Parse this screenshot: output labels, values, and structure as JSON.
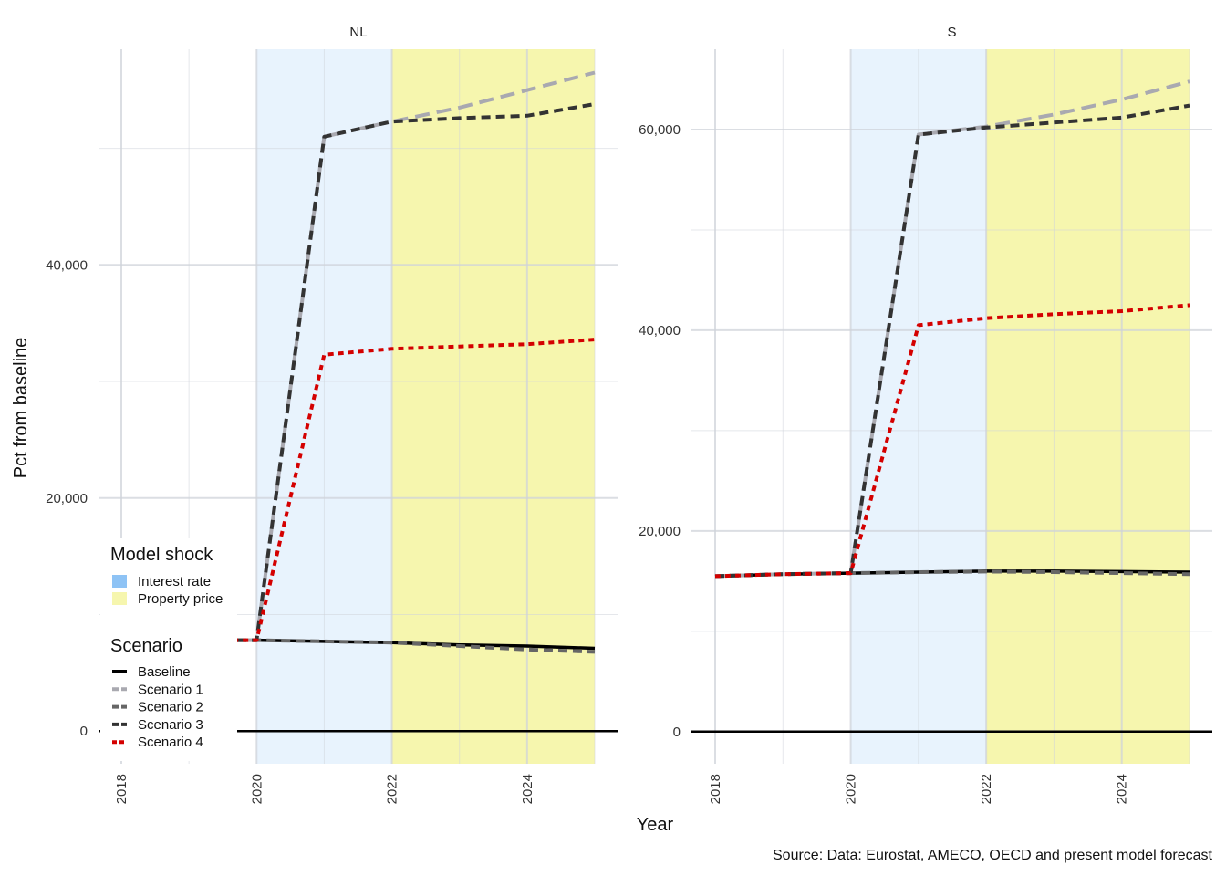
{
  "chart_data": {
    "type": "line",
    "ylabel": "Pct from baseline",
    "xlabel": "Year",
    "caption": "Source: Data: Eurostat, AMECO, OECD and present model forecast",
    "x_ticks": [
      "2018",
      "2020",
      "2022",
      "2024"
    ],
    "x_range": [
      2018,
      2025
    ],
    "shock_legend_title": "Model shock",
    "shock_regions": [
      {
        "name": "Interest rate",
        "start": 2020,
        "end": 2022,
        "color": "#8ec3f5"
      },
      {
        "name": "Property price",
        "start": 2022,
        "end": 2025,
        "color": "#f5f5a0"
      }
    ],
    "scenario_legend_title": "Scenario",
    "series_styles": [
      {
        "name": "Baseline",
        "color": "#000000",
        "dash": "solid"
      },
      {
        "name": "Scenario 1",
        "color": "#a9a9b0",
        "dash": "longdash"
      },
      {
        "name": "Scenario 2",
        "color": "#666666",
        "dash": "dash"
      },
      {
        "name": "Scenario 3",
        "color": "#333333",
        "dash": "dash"
      },
      {
        "name": "Scenario 4",
        "color": "#d40000",
        "dash": "dot"
      }
    ],
    "panels": [
      {
        "title": "NL",
        "y_ticks": [
          0,
          20000,
          40000
        ],
        "y_tick_labels": [
          "0",
          "20,000",
          "40,000"
        ],
        "ylim": [
          -2800,
          58500
        ],
        "x": [
          2019.5,
          2020,
          2021,
          2022,
          2023,
          2024,
          2025
        ],
        "series": [
          {
            "name": "Baseline",
            "values": [
              7800,
              7800,
              7700,
              7600,
              7400,
              7300,
              7100
            ]
          },
          {
            "name": "Scenario 1",
            "values": [
              7800,
              7800,
              51000,
              52300,
              53500,
              55000,
              56500
            ]
          },
          {
            "name": "Scenario 2",
            "values": [
              7800,
              7800,
              7700,
              7600,
              7300,
              7000,
              6800
            ]
          },
          {
            "name": "Scenario 3",
            "values": [
              7800,
              7800,
              51000,
              52300,
              52600,
              52800,
              53800
            ]
          },
          {
            "name": "Scenario 4",
            "values": [
              7800,
              7800,
              32300,
              32800,
              33000,
              33200,
              33600
            ]
          }
        ]
      },
      {
        "title": "S",
        "y_ticks": [
          0,
          20000,
          40000,
          60000
        ],
        "y_tick_labels": [
          "0",
          "20,000",
          "40,000",
          "60,000"
        ],
        "ylim": [
          -3200,
          68000
        ],
        "x": [
          2018,
          2019,
          2020,
          2021,
          2022,
          2023,
          2024,
          2025
        ],
        "series": [
          {
            "name": "Baseline",
            "values": [
              15500,
              15700,
              15800,
              15900,
              16000,
              16000,
              15950,
              15900
            ]
          },
          {
            "name": "Scenario 1",
            "values": [
              15500,
              15700,
              15800,
              59500,
              60300,
              61500,
              63000,
              64800
            ]
          },
          {
            "name": "Scenario 2",
            "values": [
              15500,
              15700,
              15800,
              15900,
              15950,
              15900,
              15800,
              15700
            ]
          },
          {
            "name": "Scenario 3",
            "values": [
              15500,
              15700,
              15800,
              59500,
              60200,
              60700,
              61200,
              62400
            ]
          },
          {
            "name": "Scenario 4",
            "values": [
              15500,
              15700,
              15800,
              40500,
              41200,
              41600,
              41900,
              42500
            ]
          }
        ]
      }
    ]
  }
}
